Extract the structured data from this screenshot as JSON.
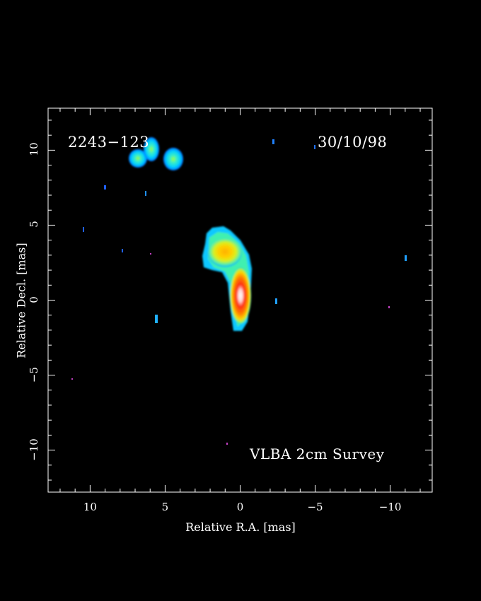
{
  "source_label": "2243−123",
  "date_label": "30/10/98",
  "survey_label": "VLBA 2cm Survey",
  "x_axis": {
    "label": "Relative R.A. [mas]",
    "ticks": [
      {
        "value": 10,
        "text": "10"
      },
      {
        "value": 5,
        "text": "5"
      },
      {
        "value": 0,
        "text": "0"
      },
      {
        "value": -5,
        "text": "−5"
      },
      {
        "value": -10,
        "text": "−10"
      }
    ],
    "range": [
      12.8,
      -12.8
    ]
  },
  "y_axis": {
    "label": "Relative Decl. [mas]",
    "ticks": [
      {
        "value": 10,
        "text": "10"
      },
      {
        "value": 5,
        "text": "5"
      },
      {
        "value": 0,
        "text": "0"
      },
      {
        "value": -5,
        "text": "−5"
      },
      {
        "value": -10,
        "text": "−10"
      }
    ],
    "range": [
      -12.8,
      12.8
    ]
  },
  "colors": {
    "background": "#000000",
    "frame": "#ffffff",
    "colormap": [
      "#0050ff",
      "#00b0ff",
      "#30f0d0",
      "#c8f030",
      "#ffd000",
      "#ff8000",
      "#ff2000",
      "#ffffff"
    ]
  }
}
